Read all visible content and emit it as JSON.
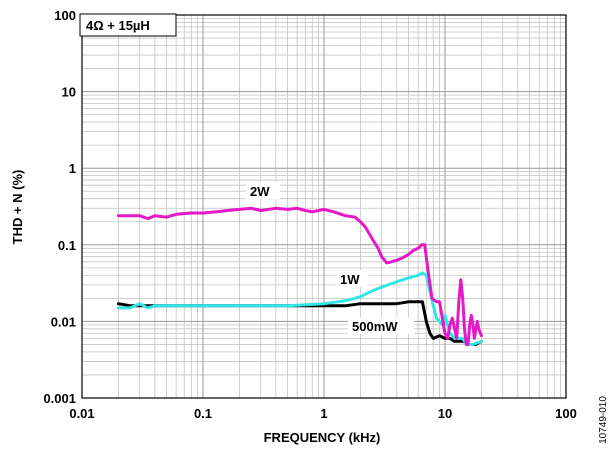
{
  "chart_data": {
    "type": "line",
    "title": "",
    "xlabel": "FREQUENCY (kHz)",
    "ylabel": "THD + N (%)",
    "x_scale": "log",
    "y_scale": "log",
    "xlim": [
      0.01,
      100
    ],
    "ylim": [
      0.001,
      100
    ],
    "x_ticks": [
      "0.01",
      "0.1",
      "1",
      "10",
      "100"
    ],
    "y_ticks": [
      "0.001",
      "0.01",
      "0.1",
      "1",
      "10",
      "100"
    ],
    "grid": true,
    "legend_box_text": "4Ω + 15µH",
    "figure_id": "10749-010",
    "series": [
      {
        "name": "2W",
        "color": "#e619c8",
        "x": [
          0.02,
          0.025,
          0.03,
          0.035,
          0.04,
          0.05,
          0.06,
          0.08,
          0.1,
          0.13,
          0.16,
          0.2,
          0.25,
          0.3,
          0.4,
          0.5,
          0.6,
          0.7,
          0.8,
          1.0,
          1.2,
          1.5,
          1.8,
          2.0,
          2.2,
          2.5,
          2.8,
          3.0,
          3.3,
          3.6,
          4.0,
          4.5,
          5.0,
          5.5,
          6.0,
          6.4,
          6.8,
          7.2,
          7.8,
          8.5,
          9.0,
          9.5,
          10.0,
          10.5,
          11.0,
          11.5,
          12.0,
          12.5,
          13.0,
          13.5,
          14.0,
          14.5,
          15.0,
          15.5,
          16.0,
          16.5,
          17.0,
          17.5,
          18.0,
          18.5,
          19.0,
          20.0
        ],
        "y": [
          0.24,
          0.24,
          0.24,
          0.22,
          0.24,
          0.23,
          0.25,
          0.26,
          0.26,
          0.27,
          0.28,
          0.29,
          0.3,
          0.28,
          0.3,
          0.29,
          0.3,
          0.28,
          0.27,
          0.29,
          0.27,
          0.24,
          0.23,
          0.2,
          0.17,
          0.12,
          0.09,
          0.07,
          0.058,
          0.06,
          0.063,
          0.068,
          0.075,
          0.085,
          0.09,
          0.1,
          0.1,
          0.05,
          0.02,
          0.018,
          0.018,
          0.011,
          0.007,
          0.006,
          0.009,
          0.011,
          0.008,
          0.006,
          0.018,
          0.035,
          0.02,
          0.008,
          0.005,
          0.005,
          0.009,
          0.012,
          0.009,
          0.006,
          0.008,
          0.01,
          0.008,
          0.0065
        ]
      },
      {
        "name": "1W",
        "color": "#33e6e6",
        "x": [
          0.02,
          0.025,
          0.03,
          0.035,
          0.04,
          0.05,
          0.07,
          0.1,
          0.2,
          0.5,
          1.0,
          1.3,
          1.6,
          2.0,
          2.5,
          3.0,
          4.0,
          5.0,
          6.0,
          6.5,
          7.0,
          7.5,
          8.0,
          8.5,
          9.0,
          9.5,
          10.0,
          11.0,
          12.0,
          13.0,
          14.0,
          15.0,
          17.0,
          20.0
        ],
        "y": [
          0.015,
          0.015,
          0.017,
          0.015,
          0.016,
          0.016,
          0.016,
          0.016,
          0.016,
          0.016,
          0.017,
          0.018,
          0.019,
          0.021,
          0.025,
          0.028,
          0.033,
          0.037,
          0.04,
          0.043,
          0.04,
          0.025,
          0.016,
          0.011,
          0.01,
          0.009,
          0.012,
          0.007,
          0.006,
          0.006,
          0.006,
          0.005,
          0.005,
          0.0055
        ]
      },
      {
        "name": "500mW",
        "color": "#000000",
        "x": [
          0.02,
          0.025,
          0.03,
          0.04,
          0.05,
          0.07,
          0.1,
          0.2,
          0.3,
          0.5,
          1.0,
          1.5,
          2.0,
          3.0,
          4.0,
          5.0,
          6.0,
          6.5,
          7.0,
          7.5,
          8.0,
          9.0,
          10.0,
          11.0,
          12.0,
          14.0,
          16.0,
          18.0,
          20.0
        ],
        "y": [
          0.017,
          0.016,
          0.016,
          0.016,
          0.016,
          0.016,
          0.016,
          0.016,
          0.016,
          0.016,
          0.016,
          0.016,
          0.017,
          0.017,
          0.017,
          0.018,
          0.018,
          0.018,
          0.01,
          0.007,
          0.006,
          0.0065,
          0.006,
          0.006,
          0.0055,
          0.0055,
          0.005,
          0.005,
          0.0055
        ]
      }
    ]
  }
}
